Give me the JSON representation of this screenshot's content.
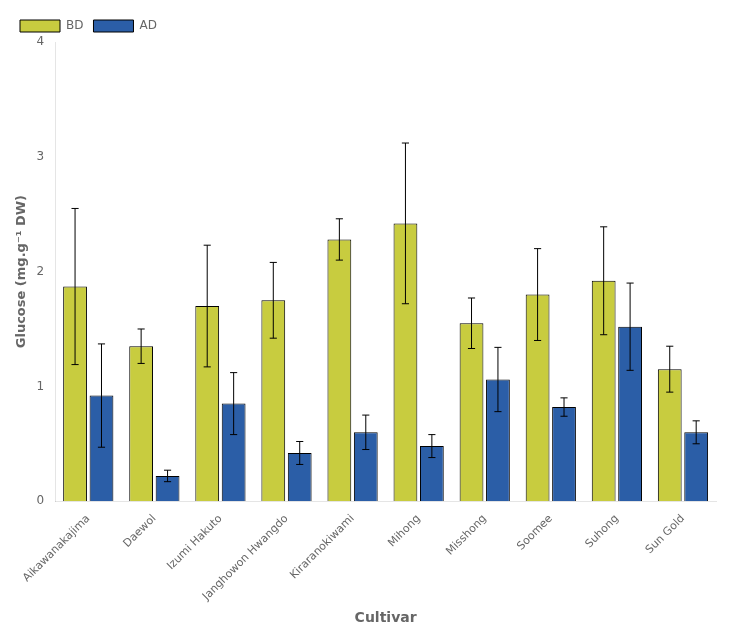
{
  "chart_data": {
    "type": "bar",
    "categories": [
      "Aikawanakajima",
      "Daewol",
      "Izumi Hakuto",
      "Janghowon Hwangdo",
      "Kiraranokiwami",
      "Mihong",
      "Misshong",
      "Soomee",
      "Suhong",
      "Sun Gold"
    ],
    "series": [
      {
        "name": "BD",
        "color": "#c8cc3f",
        "values": [
          1.87,
          1.35,
          1.7,
          1.75,
          2.28,
          2.42,
          1.55,
          1.8,
          1.92,
          1.15
        ],
        "errors": [
          0.68,
          0.15,
          0.53,
          0.33,
          0.18,
          0.7,
          0.22,
          0.4,
          0.47,
          0.2
        ]
      },
      {
        "name": "AD",
        "color": "#2b5ea7",
        "values": [
          0.92,
          0.22,
          0.85,
          0.42,
          0.6,
          0.48,
          1.06,
          0.82,
          1.52,
          0.6
        ],
        "errors": [
          0.45,
          0.05,
          0.27,
          0.1,
          0.15,
          0.1,
          0.28,
          0.08,
          0.38,
          0.1
        ]
      }
    ],
    "xlabel": "Cultivar",
    "ylabel": "Glucose (mg.g⁻¹ DW)",
    "ylim": [
      0,
      4.0
    ],
    "yticks": [
      0,
      1,
      2,
      3,
      4
    ],
    "legend": "upper left",
    "grid": false
  }
}
